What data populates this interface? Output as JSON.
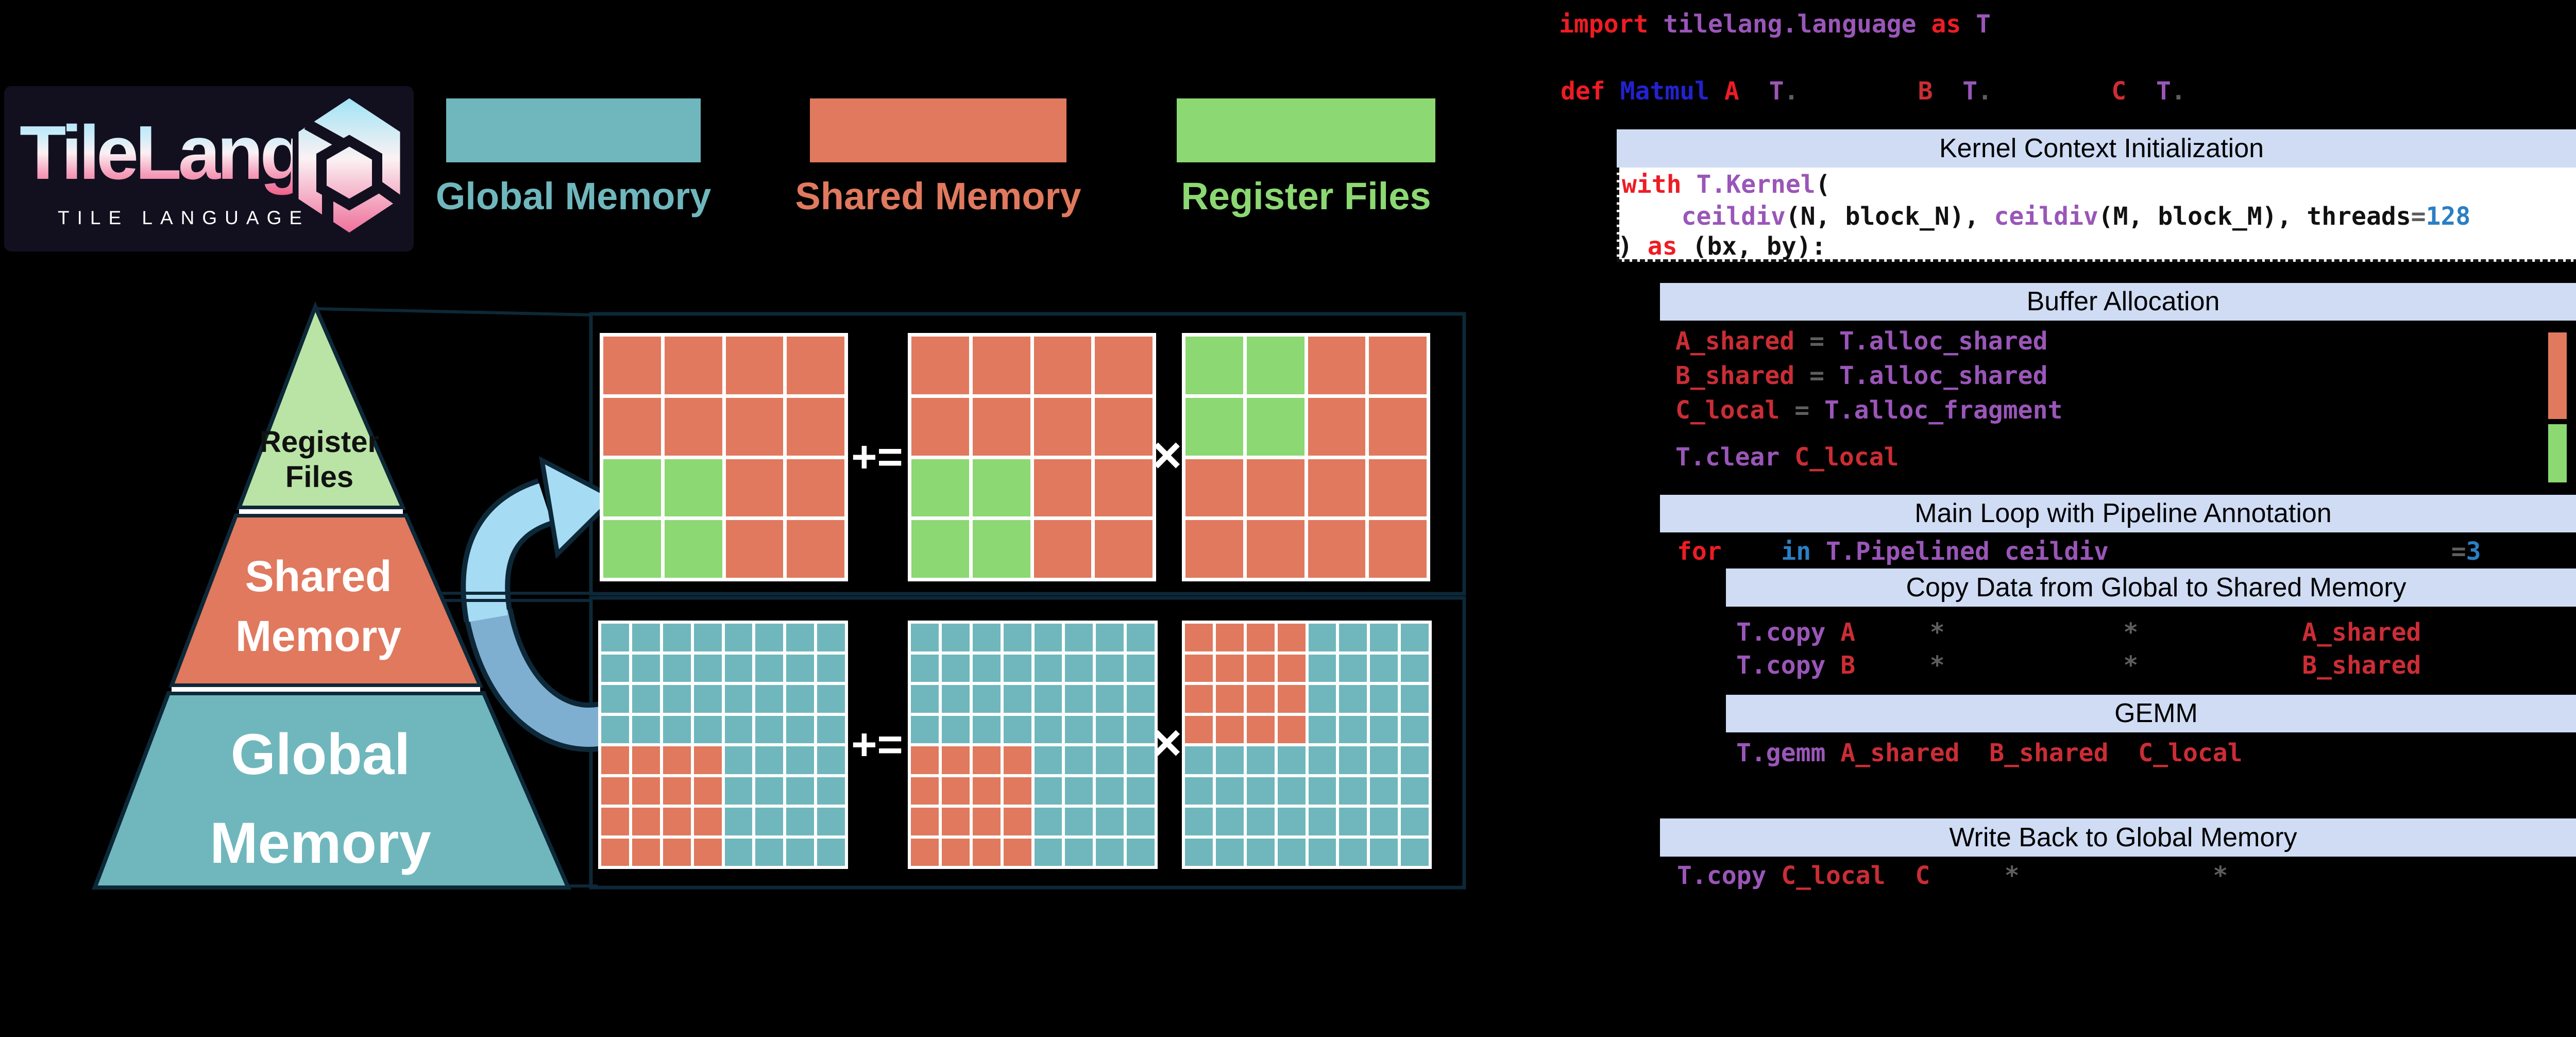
{
  "colors": {
    "teal": "#6FB7BD",
    "salmon": "#E0795E",
    "green": "#8CD873",
    "pyr_green": "#B9E4A6",
    "header_bg": "#CFDCF4",
    "arrow_light": "#A6DBF4",
    "arrow_dark": "#7FAFD0",
    "outline": "#0D2838",
    "logo_bg": "#12101F",
    "kw": "#EE1C24",
    "id": "#CB2D35",
    "purple": "#9A56B8",
    "dblue": "#2222CF",
    "mblue": "#2B7FC4",
    "gray": "#5E5E5E",
    "codeblack": "#111111"
  },
  "logo": {
    "title": "TileLang",
    "subtitle": "TILE LANGUAGE"
  },
  "legend": {
    "items": [
      {
        "label": "Global Memory",
        "color": "#6FB7BD"
      },
      {
        "label": "Shared Memory",
        "color": "#E0795E"
      },
      {
        "label": "Register Files",
        "color": "#8CD873"
      }
    ]
  },
  "pyramid": {
    "layers": [
      {
        "name": "register-files",
        "lines": [
          "Register",
          "Files"
        ],
        "fill": "#B9E4A6"
      },
      {
        "name": "shared-memory",
        "lines": [
          "Shared",
          "Memory"
        ],
        "fill": "#E0795E"
      },
      {
        "name": "global-memory",
        "lines": [
          "Global",
          "Memory"
        ],
        "fill": "#6FB7BD"
      }
    ]
  },
  "matrix_figure": {
    "cell_colors": {
      "T": "#6FB7BD",
      "S": "#E0795E",
      "G": "#8CD873"
    },
    "top": {
      "operators": [
        "+=",
        "×"
      ],
      "matrices": [
        [
          "SSSS",
          "SSSS",
          "GGSS",
          "GGSS"
        ],
        [
          "SSSS",
          "SSSS",
          "GGSS",
          "GGSS"
        ],
        [
          "GGSS",
          "GGSS",
          "SSSS",
          "SSSS"
        ]
      ]
    },
    "bottom": {
      "operators": [
        "+=",
        "×"
      ],
      "matrices": [
        [
          "TTTTTTTT",
          "TTTTTTTT",
          "TTTTTTTT",
          "TTTTTTTT",
          "SSSSTTTT",
          "SSSSTTTT",
          "SSSSTTTT",
          "SSSSTTTT"
        ],
        [
          "TTTTTTTT",
          "TTTTTTTT",
          "TTTTTTTT",
          "TTTTTTTT",
          "SSSSTTTT",
          "SSSSTTTT",
          "SSSSTTTT",
          "SSSSTTTT"
        ],
        [
          "SSSSTTTT",
          "SSSSTTTT",
          "SSSSTTTT",
          "SSSSTTTT",
          "TTTTTTTT",
          "TTTTTTTT",
          "TTTTTTTT",
          "TTTTTTTT"
        ]
      ]
    }
  },
  "code": {
    "headers": {
      "kernel": "Kernel Context Initialization",
      "buffer": "Buffer Allocation",
      "mainloop": "Main Loop with Pipeline Annotation",
      "copy": "Copy Data from Global to Shared Memory",
      "gemm": "GEMM",
      "writeback": "Write Back to Global Memory"
    },
    "buffer_bars": [
      {
        "color": "#E0795E"
      },
      {
        "color": "#8CD873"
      }
    ],
    "lines": {
      "import": [
        [
          "import ",
          "kw"
        ],
        [
          "tilelang.language ",
          "purple"
        ],
        [
          "as ",
          "kw"
        ],
        [
          "T",
          "purple"
        ]
      ],
      "def": [
        [
          "def ",
          "kw"
        ],
        [
          "Matmul ",
          "dblue"
        ],
        [
          "A",
          "kw"
        ],
        [
          "  ",
          "sp"
        ],
        [
          "T",
          "purple"
        ],
        [
          ".",
          "gray"
        ],
        [
          "        ",
          "sp"
        ],
        [
          "B",
          "id"
        ],
        [
          "  ",
          "sp"
        ],
        [
          "T",
          "purple"
        ],
        [
          ".",
          "gray"
        ],
        [
          "        ",
          "sp"
        ],
        [
          "C",
          "id"
        ],
        [
          "  ",
          "sp"
        ],
        [
          "T",
          "purple"
        ],
        [
          ".",
          "gray"
        ]
      ],
      "with": [
        [
          "with ",
          "kw"
        ],
        [
          "T.Kernel",
          "purple"
        ],
        [
          "(",
          "black"
        ]
      ],
      "ceildiv": [
        [
          "    ",
          "sp"
        ],
        [
          "ceildiv",
          "purple"
        ],
        [
          "(N, block_N), ",
          "black"
        ],
        [
          "ceildiv",
          "purple"
        ],
        [
          "(M, block_M), threads",
          "black"
        ],
        [
          "=",
          "gray"
        ],
        [
          "128",
          "mblue"
        ]
      ],
      "askernel": [
        [
          ") ",
          "black"
        ],
        [
          "as ",
          "kw"
        ],
        [
          "(bx, by):",
          "black"
        ]
      ],
      "ashared": [
        [
          "A_shared ",
          "id"
        ],
        [
          "= ",
          "gray"
        ],
        [
          "T.alloc_shared",
          "purple"
        ]
      ],
      "bshared": [
        [
          "B_shared ",
          "id"
        ],
        [
          "= ",
          "gray"
        ],
        [
          "T.alloc_shared",
          "purple"
        ]
      ],
      "clocal": [
        [
          "C_local ",
          "id"
        ],
        [
          "= ",
          "gray"
        ],
        [
          "T.alloc_fragment",
          "purple"
        ]
      ],
      "tclear": [
        [
          "T.clear ",
          "purple"
        ],
        [
          "C_local",
          "id"
        ]
      ],
      "for": [
        [
          "for ",
          "kw"
        ],
        [
          "   ",
          "sp"
        ],
        [
          "in ",
          "mblue"
        ],
        [
          "T.Pipelined ",
          "purple"
        ],
        [
          "ceildiv",
          "purple"
        ],
        [
          "                       ",
          "sp"
        ],
        [
          "=",
          "gray"
        ],
        [
          "3",
          "mblue"
        ]
      ],
      "copya": [
        [
          "T.copy ",
          "purple"
        ],
        [
          "A",
          "id"
        ],
        [
          "     ",
          "sp"
        ],
        [
          "*",
          "gray"
        ],
        [
          "            ",
          "sp"
        ],
        [
          "*",
          "gray"
        ],
        [
          "           ",
          "sp"
        ],
        [
          "A_shared",
          "id"
        ]
      ],
      "copyb": [
        [
          "T.copy ",
          "purple"
        ],
        [
          "B",
          "id"
        ],
        [
          "     ",
          "sp"
        ],
        [
          "*",
          "gray"
        ],
        [
          "            ",
          "sp"
        ],
        [
          "*",
          "gray"
        ],
        [
          "           ",
          "sp"
        ],
        [
          "B_shared",
          "id"
        ]
      ],
      "gemm": [
        [
          "T.gemm ",
          "purple"
        ],
        [
          "A_shared",
          "id"
        ],
        [
          "  ",
          "sp"
        ],
        [
          "B_shared",
          "id"
        ],
        [
          "  ",
          "sp"
        ],
        [
          "C_local",
          "id"
        ]
      ],
      "copyc": [
        [
          "T.copy ",
          "purple"
        ],
        [
          "C_local",
          "id"
        ],
        [
          "  ",
          "sp"
        ],
        [
          "C",
          "id"
        ],
        [
          "     ",
          "sp"
        ],
        [
          "*",
          "gray"
        ],
        [
          "             ",
          "sp"
        ],
        [
          "*",
          "gray"
        ]
      ]
    }
  }
}
